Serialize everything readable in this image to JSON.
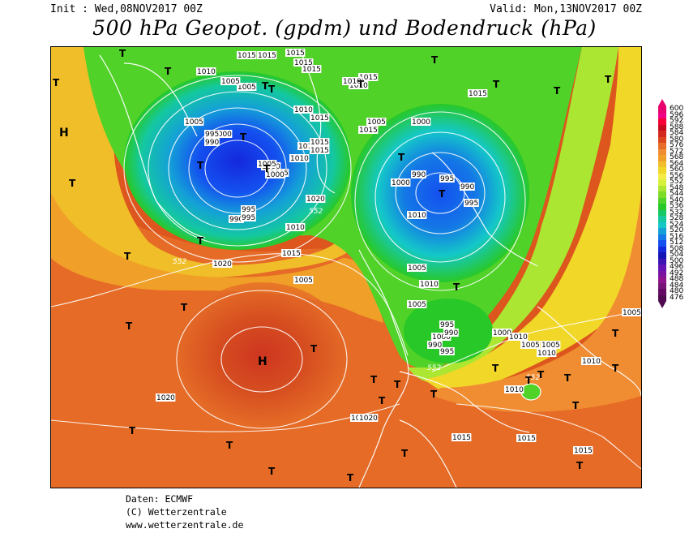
{
  "header": {
    "init": "Init : Wed,08NOV2017 00Z",
    "valid": "Valid: Mon,13NOV2017 00Z",
    "title": "500 hPa Geopot. (gpdm) und Bodendruck (hPa)"
  },
  "legend": {
    "values": [
      "600",
      "596",
      "592",
      "588",
      "584",
      "580",
      "576",
      "572",
      "568",
      "564",
      "560",
      "556",
      "552",
      "548",
      "544",
      "540",
      "536",
      "532",
      "528",
      "524",
      "520",
      "516",
      "512",
      "508",
      "504",
      "500",
      "496",
      "492",
      "488",
      "484",
      "480",
      "476"
    ],
    "colors": [
      "#e8006e",
      "#f00082",
      "#f80036",
      "#c80a1e",
      "#d2281e",
      "#dc461e",
      "#e66e28",
      "#f08c32",
      "#f0a028",
      "#f0be28",
      "#f0d728",
      "#f5eb46",
      "#d7f03c",
      "#aae632",
      "#7ddc28",
      "#50d228",
      "#28c828",
      "#14c864",
      "#14c8a0",
      "#14c8c8",
      "#14a0d7",
      "#1478e6",
      "#1450f0",
      "#1428dc",
      "#1414b4",
      "#3c14b4",
      "#6414b4",
      "#7814a0",
      "#8c148c",
      "#781478",
      "#640a64",
      "#500a50"
    ]
  },
  "map": {
    "pressure_labels": [
      "1015",
      "1015",
      "1015",
      "1015",
      "1015",
      "1010",
      "1005",
      "1005",
      "1005",
      "1000",
      "995",
      "990",
      "1000",
      "1005",
      "1000",
      "995",
      "990",
      "995",
      "1015",
      "1010",
      "1015",
      "1015",
      "1010",
      "1005",
      "1015",
      "1010",
      "1015",
      "1010",
      "1005",
      "1000",
      "995",
      "990",
      "995",
      "990",
      "995",
      "1000",
      "1020",
      "1010",
      "1015",
      "1020",
      "1005",
      "1010",
      "1015",
      "1000",
      "1005",
      "1010",
      "1015",
      "1005",
      "1000",
      "995",
      "990",
      "990",
      "995",
      "1000",
      "1010",
      "1005",
      "1005",
      "1010",
      "1010",
      "1005",
      "1015",
      "1015",
      "1020",
      "1020",
      "1010",
      "1015",
      "1015",
      "1015"
    ],
    "geopotential_labels": [
      "552",
      "552",
      "552",
      "552"
    ],
    "highs": [
      "H",
      "H"
    ],
    "lows": [
      "T",
      "T",
      "T",
      "T",
      "T",
      "T",
      "T",
      "T",
      "T",
      "T",
      "T",
      "T",
      "T",
      "T",
      "T",
      "T",
      "T",
      "T",
      "T",
      "T",
      "T",
      "T",
      "T",
      "T",
      "T",
      "T",
      "T",
      "T",
      "T",
      "T",
      "T",
      "T",
      "T",
      "T",
      "T",
      "T",
      "T",
      "T",
      "T",
      "T"
    ]
  },
  "footer": {
    "line1": "Daten: ECMWF",
    "line2": "(C) Wetterzentrale",
    "line3": "www.wetterzentrale.de"
  }
}
